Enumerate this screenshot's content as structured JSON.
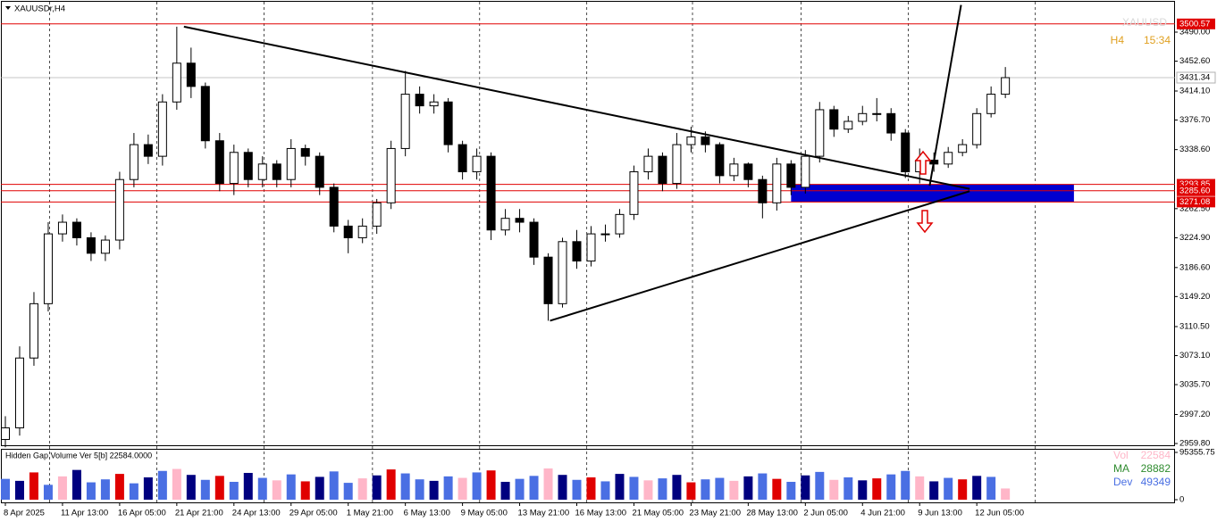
{
  "chart_data": {
    "type": "candlestick",
    "title": "XAUUSDr,H4",
    "watermark": "XAUUSD",
    "timeframe": "H4",
    "timer": "15:34",
    "open": [
      2965,
      2980,
      3070,
      3140,
      3230,
      3245,
      3225,
      3205,
      3222,
      3300,
      3345,
      3330,
      3400,
      3450,
      3420,
      3350,
      3295,
      3335,
      3300,
      3320,
      3300,
      3340,
      3330,
      3290,
      3240,
      3225,
      3240,
      3270,
      3340,
      3410,
      3395,
      3400,
      3345,
      3310,
      3330,
      3235,
      3250,
      3245,
      3200,
      3140,
      3220,
      3195,
      3230,
      3230,
      3255,
      3310,
      3330,
      3295,
      3345,
      3355,
      3345,
      3305,
      3320,
      3300,
      3270,
      3320,
      3290,
      3330,
      3390,
      3365,
      3375,
      3385,
      3385,
      3360,
      3310,
      3325,
      3320,
      3335,
      3345,
      3385,
      3410
    ],
    "high": [
      2995,
      3085,
      3155,
      3245,
      3255,
      3250,
      3232,
      3228,
      3310,
      3360,
      3358,
      3410,
      3497,
      3470,
      3425,
      3360,
      3345,
      3340,
      3330,
      3325,
      3352,
      3345,
      3335,
      3295,
      3248,
      3250,
      3275,
      3350,
      3440,
      3420,
      3410,
      3405,
      3350,
      3340,
      3335,
      3262,
      3262,
      3250,
      3205,
      3225,
      3235,
      3240,
      3242,
      3262,
      3318,
      3340,
      3335,
      3360,
      3368,
      3362,
      3348,
      3328,
      3322,
      3305,
      3328,
      3325,
      3338,
      3400,
      3395,
      3382,
      3395,
      3405,
      3392,
      3365,
      3340,
      3335,
      3342,
      3352,
      3392,
      3420,
      3445
    ],
    "low": [
      2955,
      2970,
      3060,
      3130,
      3220,
      3215,
      3195,
      3195,
      3210,
      3290,
      3320,
      3318,
      3390,
      3405,
      3340,
      3285,
      3280,
      3290,
      3290,
      3290,
      3290,
      3318,
      3280,
      3232,
      3205,
      3218,
      3230,
      3262,
      3330,
      3385,
      3385,
      3335,
      3300,
      3300,
      3222,
      3228,
      3232,
      3190,
      3118,
      3135,
      3185,
      3188,
      3220,
      3225,
      3248,
      3300,
      3285,
      3288,
      3335,
      3335,
      3295,
      3298,
      3290,
      3250,
      3260,
      3280,
      3282,
      3322,
      3355,
      3360,
      3370,
      3375,
      3350,
      3302,
      3295,
      3310,
      3315,
      3330,
      3340,
      3380,
      3405
    ],
    "close": [
      2980,
      3070,
      3140,
      3230,
      3245,
      3225,
      3205,
      3222,
      3300,
      3345,
      3330,
      3400,
      3450,
      3420,
      3350,
      3295,
      3335,
      3300,
      3320,
      3300,
      3340,
      3330,
      3290,
      3240,
      3225,
      3240,
      3270,
      3340,
      3410,
      3395,
      3400,
      3345,
      3310,
      3330,
      3235,
      3250,
      3245,
      3200,
      3140,
      3220,
      3195,
      3230,
      3230,
      3255,
      3310,
      3330,
      3295,
      3345,
      3355,
      3345,
      3305,
      3320,
      3300,
      3270,
      3320,
      3290,
      3330,
      3390,
      3365,
      3375,
      3385,
      3385,
      3360,
      3310,
      3325,
      3320,
      3335,
      3345,
      3385,
      3410,
      3431.34
    ],
    "xlim": [
      -0.3125,
      81.875
    ],
    "ylim": [
      2956.4,
      3531.4
    ],
    "xticks": [
      {
        "value": 0,
        "label": "8 Apr 2025"
      },
      {
        "value": 4,
        "label": "11 Apr 13:00"
      },
      {
        "value": 8,
        "label": "16 Apr 05:00"
      },
      {
        "value": 12,
        "label": "21 Apr 21:00"
      },
      {
        "value": 16,
        "label": "24 Apr 13:00"
      },
      {
        "value": 20,
        "label": "29 Apr 05:00"
      },
      {
        "value": 24,
        "label": "1 May 21:00"
      },
      {
        "value": 28,
        "label": "6 May 13:00"
      },
      {
        "value": 32,
        "label": "9 May 05:00"
      },
      {
        "value": 36,
        "label": "13 May 21:00"
      },
      {
        "value": 40,
        "label": "16 May 13:00"
      },
      {
        "value": 44,
        "label": "21 May 05:00"
      },
      {
        "value": 48,
        "label": "23 May 21:00"
      },
      {
        "value": 52,
        "label": "28 May 13:00"
      },
      {
        "value": 56,
        "label": "2 Jun 05:00"
      },
      {
        "value": 60,
        "label": "4 Jun 21:00"
      },
      {
        "value": 64,
        "label": "9 Jun 13:00"
      },
      {
        "value": 68,
        "label": "12 Jun 05:00"
      }
    ],
    "xgrid": [
      3.1,
      10.6,
      18.1,
      25.7,
      33.2,
      40.7,
      48.1,
      55.7,
      63.2,
      72.1
    ],
    "yticks": [
      {
        "value": 3490,
        "label": "3490.00"
      },
      {
        "value": 3452.6,
        "label": "3452.60"
      },
      {
        "value": 3414.1,
        "label": "3414.10"
      },
      {
        "value": 3376.7,
        "label": "3376.70"
      },
      {
        "value": 3338.6,
        "label": "3338.60"
      },
      {
        "value": 3262.5,
        "label": "3262.50"
      },
      {
        "value": 3224.9,
        "label": "3224.90"
      },
      {
        "value": 3186.6,
        "label": "3186.60"
      },
      {
        "value": 3149.2,
        "label": "3149.20"
      },
      {
        "value": 3110.5,
        "label": "3110.50"
      },
      {
        "value": 3073.1,
        "label": "3073.10"
      },
      {
        "value": 3035.7,
        "label": "3035.70"
      },
      {
        "value": 2997.2,
        "label": "2997.20"
      },
      {
        "value": 2959.8,
        "label": "2959.80"
      }
    ],
    "levels": [
      {
        "value": 3500.57,
        "label": "3500.57",
        "color": "#e00000"
      },
      {
        "value": 3293.85,
        "label": "3293.85",
        "color": "#e00000"
      },
      {
        "value": 3285.6,
        "label": "3285.60",
        "color": "#e00000"
      },
      {
        "value": 3271.08,
        "label": "3271.08",
        "color": "#e00000"
      }
    ],
    "current": {
      "value": 3431.34,
      "label": "3431.34",
      "color": "#b0b0b0"
    },
    "trendlines": [
      {
        "x": [
          12.5,
          67.5
        ],
        "y": [
          3497,
          3288
        ]
      },
      {
        "x": [
          38.125,
          67.5
        ],
        "y": [
          3118,
          3285
        ]
      },
      {
        "x": [
          64.7,
          66.9
        ],
        "y": [
          3292,
          3525
        ]
      }
    ],
    "zone": {
      "x": [
        55,
        74.8
      ],
      "y": [
        3293.85,
        3271.08
      ],
      "color": "#0000d0"
    },
    "volume": {
      "title": "Hidden Gap Volume Ver 5[b] 22584.0000",
      "values": [
        42000,
        38000,
        55000,
        30000,
        47000,
        60000,
        35000,
        41000,
        52000,
        33000,
        45000,
        58000,
        62000,
        50000,
        40000,
        48000,
        36000,
        54000,
        44000,
        39000,
        51000,
        37000,
        46000,
        57000,
        34000,
        43000,
        49000,
        61000,
        53000,
        41000,
        38000,
        47000,
        44000,
        55000,
        59000,
        36000,
        42000,
        48000,
        63000,
        50000,
        40000,
        45000,
        37000,
        52000,
        46000,
        39000,
        43000,
        50000,
        35000,
        41000,
        44000,
        38000,
        47000,
        53000,
        42000,
        36000,
        49000,
        56000,
        40000,
        45000,
        39000,
        43000,
        51000,
        58000,
        47000,
        37000,
        44000,
        41000,
        48000,
        46000,
        22584
      ],
      "colors": [
        "#4a6fe3",
        "#00007f",
        "#e00000",
        "#4a6fe3",
        "#ffb6c8",
        "#00007f",
        "#4a6fe3",
        "#4a6fe3",
        "#e00000",
        "#4a6fe3",
        "#00007f",
        "#4a6fe3",
        "#ffb6c8",
        "#00007f",
        "#4a6fe3",
        "#e00000",
        "#4a6fe3",
        "#00007f",
        "#4a6fe3",
        "#ffb6c8",
        "#4a6fe3",
        "#e00000",
        "#00007f",
        "#4a6fe3",
        "#4a6fe3",
        "#ffb6c8",
        "#00007f",
        "#e00000",
        "#4a6fe3",
        "#4a6fe3",
        "#00007f",
        "#4a6fe3",
        "#ffb6c8",
        "#4a6fe3",
        "#e00000",
        "#00007f",
        "#4a6fe3",
        "#4a6fe3",
        "#ffb6c8",
        "#00007f",
        "#4a6fe3",
        "#e00000",
        "#4a6fe3",
        "#00007f",
        "#4a6fe3",
        "#ffb6c8",
        "#4a6fe3",
        "#00007f",
        "#e00000",
        "#4a6fe3",
        "#4a6fe3",
        "#ffb6c8",
        "#00007f",
        "#4a6fe3",
        "#e00000",
        "#4a6fe3",
        "#00007f",
        "#4a6fe3",
        "#ffb6c8",
        "#4a6fe3",
        "#00007f",
        "#e00000",
        "#4a6fe3",
        "#4a6fe3",
        "#ffb6c8",
        "#00007f",
        "#4a6fe3",
        "#e00000",
        "#00007f",
        "#4a6fe3",
        "#ffb6c8"
      ],
      "ylim": [
        0,
        95355.75
      ],
      "yticks": [
        {
          "value": 95355.75,
          "label": "95355.75"
        },
        0
      ],
      "legend": [
        {
          "name": "Vol",
          "value": 22584,
          "color": "#ffb6c8"
        },
        {
          "name": "MA",
          "value": 28882,
          "color": "#2e8b2e"
        },
        {
          "name": "Dev",
          "value": 49349,
          "color": "#4a6fe3"
        }
      ]
    }
  }
}
